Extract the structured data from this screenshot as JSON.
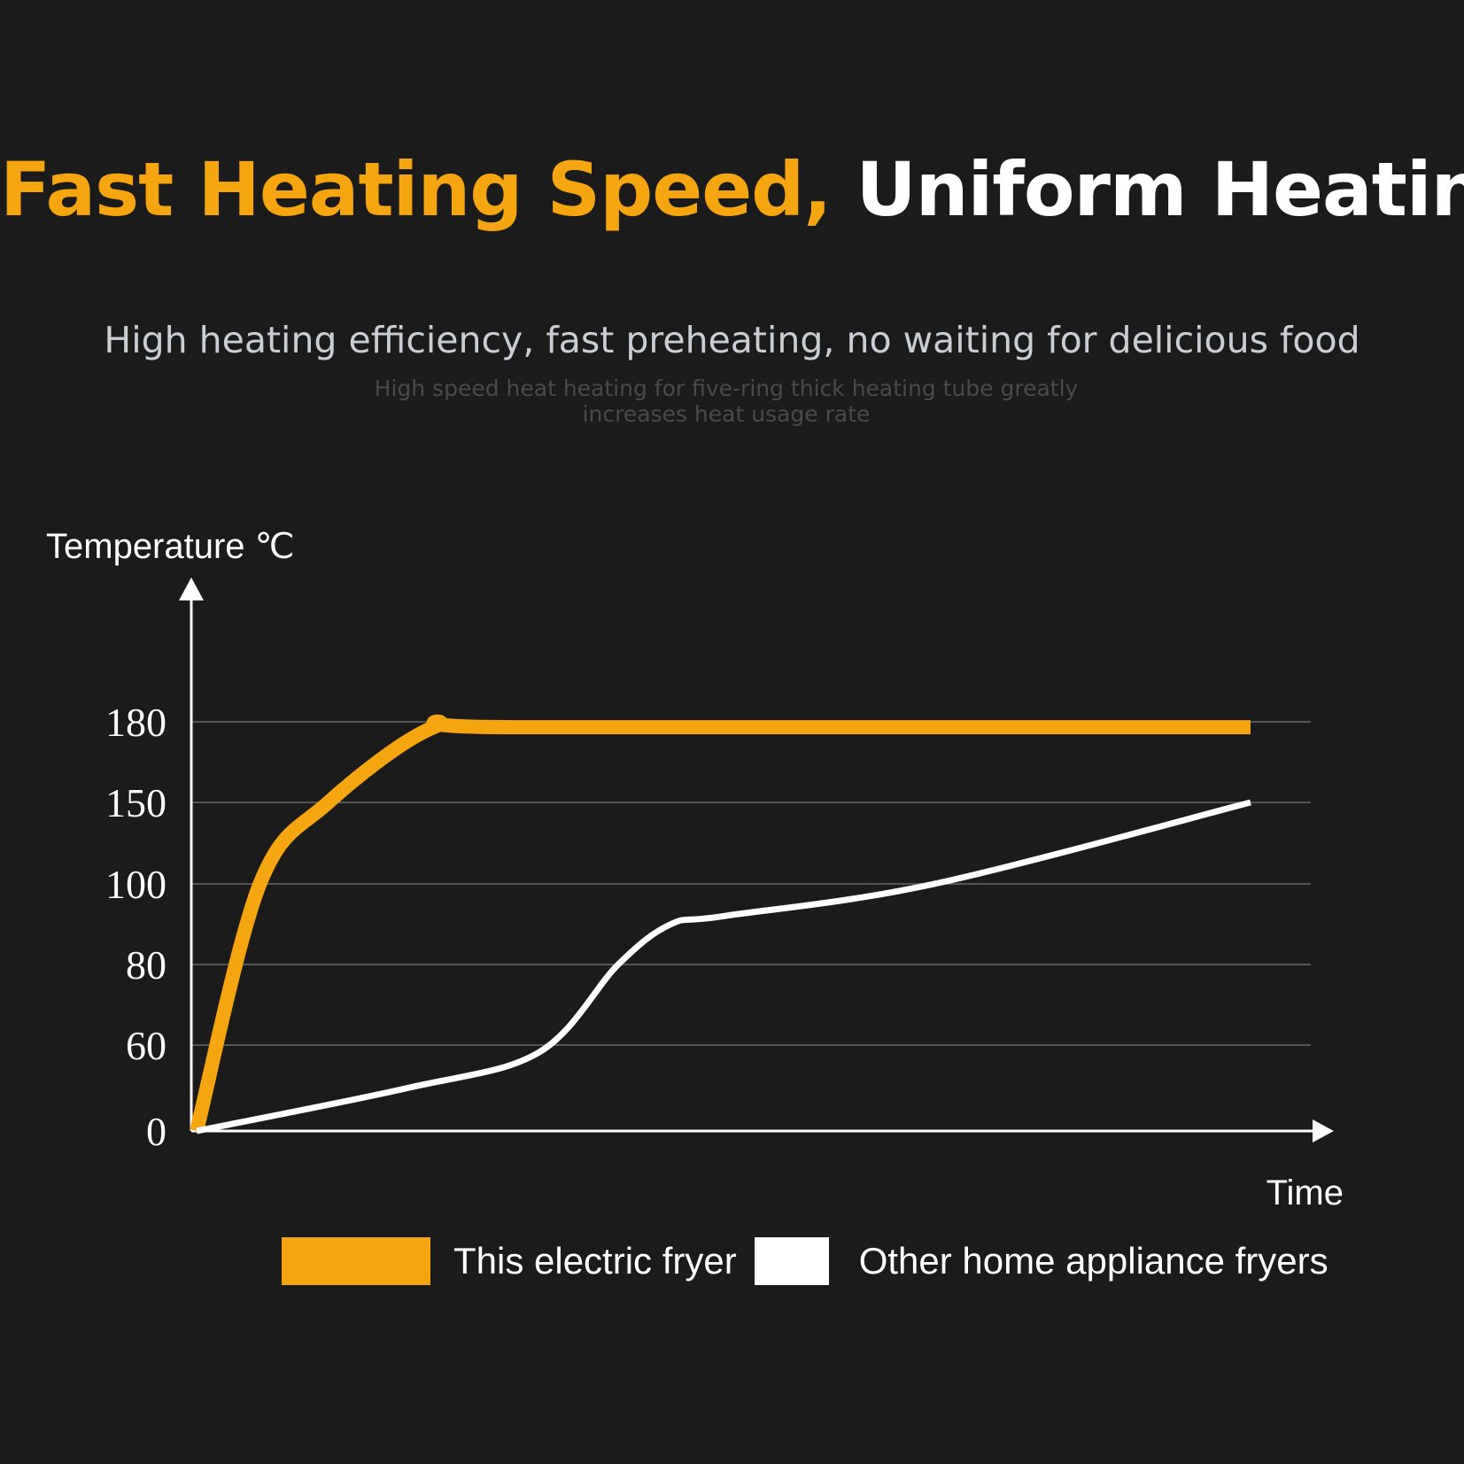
{
  "header": {
    "title_accent": "Fast Heating Speed,",
    "title_plain": "Uniform Heating",
    "subtitle": "High heating efficiency, fast preheating, no waiting for delicious food",
    "caption": "High speed heat heating for five-ring thick heating tube greatly increases heat usage rate"
  },
  "colors": {
    "background": "#1b1b1b",
    "accent": "#f5a50f",
    "white": "#ffffff",
    "grid": "#555555"
  },
  "chart_data": {
    "type": "line",
    "xlabel": "Time",
    "ylabel": "Temperature ℃",
    "y_ticks": [
      "0",
      "60",
      "80",
      "100",
      "150",
      "180"
    ],
    "grid": true,
    "legend_position": "bottom",
    "series": [
      {
        "name": "This electric fryer",
        "color": "#f5a50f",
        "points": [
          [
            0,
            0
          ],
          [
            1.2,
            100
          ],
          [
            2.5,
            150
          ],
          [
            4.5,
            178
          ],
          [
            6,
            178
          ],
          [
            20,
            178
          ]
        ]
      },
      {
        "name": "Other home appliance fryers",
        "color": "#ffffff",
        "points": [
          [
            0,
            0
          ],
          [
            4,
            30
          ],
          [
            6.5,
            55
          ],
          [
            8,
            80
          ],
          [
            9,
            90
          ],
          [
            10,
            92
          ],
          [
            14,
            100
          ],
          [
            20,
            150
          ]
        ]
      }
    ]
  }
}
